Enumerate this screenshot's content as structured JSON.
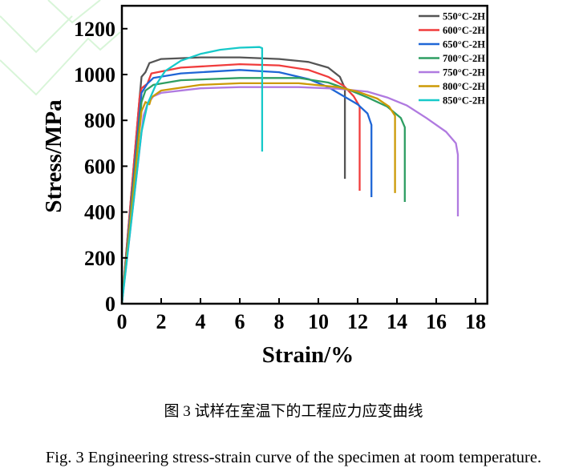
{
  "chart_data": {
    "type": "line",
    "xlabel": "Strain/%",
    "ylabel": "Stress/MPa",
    "xlim": [
      0,
      18.6
    ],
    "ylim": [
      0,
      1300
    ],
    "xticks": [
      0,
      2,
      4,
      6,
      8,
      10,
      12,
      14,
      16,
      18
    ],
    "yticks": [
      0,
      200,
      400,
      600,
      800,
      1000,
      1200
    ],
    "grid": false,
    "legend_position": "top-right",
    "series": [
      {
        "name": "550°C-2H",
        "color": "#555555",
        "points": [
          [
            0,
            0
          ],
          [
            0.9,
            900
          ],
          [
            1.0,
            990
          ],
          [
            1.2,
            1010
          ],
          [
            1.4,
            1050
          ],
          [
            2,
            1068
          ],
          [
            4,
            1075
          ],
          [
            6,
            1075
          ],
          [
            8,
            1068
          ],
          [
            9.5,
            1055
          ],
          [
            10.5,
            1030
          ],
          [
            11.1,
            990
          ],
          [
            11.35,
            940
          ],
          [
            11.35,
            545
          ]
        ]
      },
      {
        "name": "600°C-2H",
        "color": "#f03c3c",
        "points": [
          [
            0,
            0
          ],
          [
            0.9,
            900
          ],
          [
            1.0,
            940
          ],
          [
            1.3,
            960
          ],
          [
            1.5,
            1005
          ],
          [
            3,
            1030
          ],
          [
            6,
            1045
          ],
          [
            8,
            1040
          ],
          [
            9.5,
            1020
          ],
          [
            10.5,
            990
          ],
          [
            11.3,
            950
          ],
          [
            11.8,
            905
          ],
          [
            12.1,
            860
          ],
          [
            12.1,
            493
          ]
        ]
      },
      {
        "name": "650°C-2H",
        "color": "#1f66d6",
        "points": [
          [
            0,
            0
          ],
          [
            1.0,
            920
          ],
          [
            1.3,
            960
          ],
          [
            1.6,
            985
          ],
          [
            3,
            1005
          ],
          [
            6,
            1020
          ],
          [
            8,
            1010
          ],
          [
            9.5,
            980
          ],
          [
            10.5,
            945
          ],
          [
            11.3,
            905
          ],
          [
            12,
            870
          ],
          [
            12.5,
            830
          ],
          [
            12.7,
            780
          ],
          [
            12.7,
            465
          ]
        ]
      },
      {
        "name": "700°C-2H",
        "color": "#2e9e62",
        "points": [
          [
            0,
            0
          ],
          [
            1.0,
            880
          ],
          [
            1.2,
            930
          ],
          [
            1.6,
            955
          ],
          [
            3,
            975
          ],
          [
            6,
            985
          ],
          [
            9,
            985
          ],
          [
            10.5,
            965
          ],
          [
            11.5,
            935
          ],
          [
            12.5,
            900
          ],
          [
            13.5,
            860
          ],
          [
            14.2,
            810
          ],
          [
            14.4,
            770
          ],
          [
            14.4,
            444
          ]
        ]
      },
      {
        "name": "750°C-2H",
        "color": "#b07ae0",
        "points": [
          [
            0,
            0
          ],
          [
            1.1,
            820
          ],
          [
            1.3,
            870
          ],
          [
            1.6,
            905
          ],
          [
            2,
            920
          ],
          [
            4,
            940
          ],
          [
            6,
            945
          ],
          [
            9,
            945
          ],
          [
            11,
            938
          ],
          [
            12.5,
            925
          ],
          [
            13.5,
            900
          ],
          [
            14.5,
            865
          ],
          [
            15.5,
            810
          ],
          [
            16.5,
            750
          ],
          [
            17.0,
            700
          ],
          [
            17.1,
            650
          ],
          [
            17.1,
            381
          ]
        ]
      },
      {
        "name": "800°C-2H",
        "color": "#cc9a06",
        "points": [
          [
            0,
            0
          ],
          [
            1.0,
            840
          ],
          [
            1.2,
            880
          ],
          [
            1.4,
            870
          ],
          [
            1.5,
            900
          ],
          [
            2,
            930
          ],
          [
            4,
            955
          ],
          [
            6,
            962
          ],
          [
            9,
            962
          ],
          [
            11,
            945
          ],
          [
            12,
            925
          ],
          [
            13,
            895
          ],
          [
            13.6,
            860
          ],
          [
            13.9,
            820
          ],
          [
            13.9,
            483
          ]
        ]
      },
      {
        "name": "850°C-2H",
        "color": "#17c9c9",
        "points": [
          [
            0,
            0
          ],
          [
            1.0,
            750
          ],
          [
            1.3,
            870
          ],
          [
            1.7,
            950
          ],
          [
            2.2,
            1015
          ],
          [
            3,
            1060
          ],
          [
            4,
            1090
          ],
          [
            5,
            1108
          ],
          [
            6,
            1117
          ],
          [
            7,
            1120
          ],
          [
            7.14,
            1115
          ],
          [
            7.14,
            664
          ]
        ]
      }
    ]
  },
  "caption_cn": "图 3  试样在室温下的工程应力应变曲线",
  "caption_en": "Fig. 3 Engineering stress-strain curve of the specimen at room temperature.",
  "watermark_color": "#d8f5d8"
}
